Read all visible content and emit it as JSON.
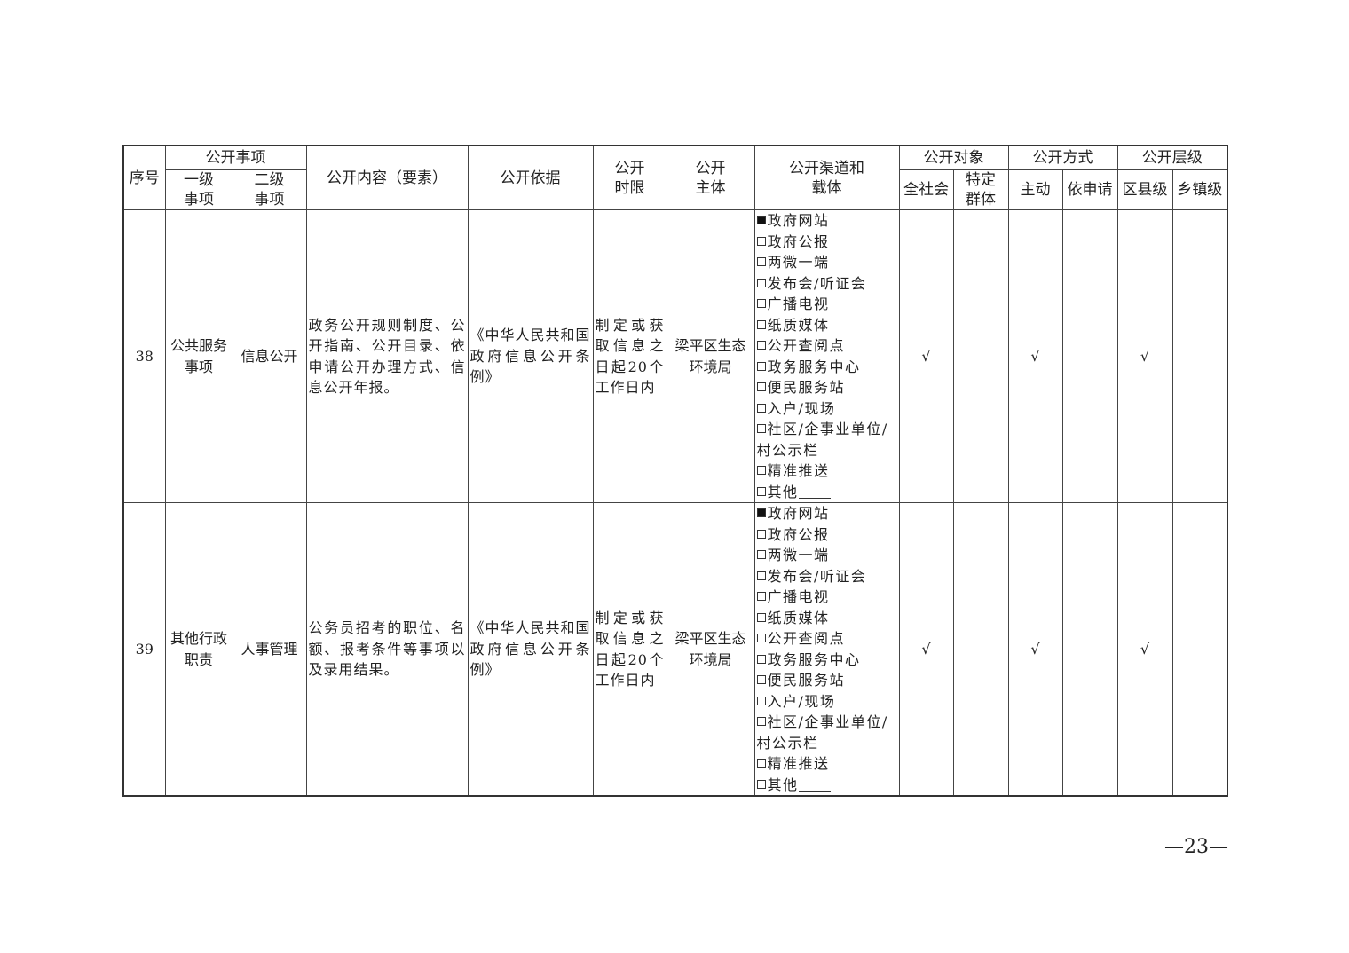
{
  "header": {
    "seq": "序号",
    "matter": "公开事项",
    "level1": "一级\n事项",
    "level1_a": "一级",
    "level1_b": "事项",
    "level2_a": "二级",
    "level2_b": "事项",
    "content": "公开内容（要素）",
    "basis": "公开依据",
    "time_a": "公开",
    "time_b": "时限",
    "subject_a": "公开",
    "subject_b": "主体",
    "channel_a": "公开渠道和",
    "channel_b": "载体",
    "target": "公开对象",
    "target_all": "全社会",
    "target_group_a": "特定",
    "target_group_b": "群体",
    "mode": "公开方式",
    "mode_active": "主动",
    "mode_request": "依申请",
    "level": "公开层级",
    "level_district": "区县级",
    "level_town": "乡镇级"
  },
  "rows": [
    {
      "seq": "38",
      "level1": "公共服务事项",
      "level2": "信息公开",
      "content": "政务公开规则制度、公开指南、公开目录、依申请公开办理方式、信息公开年报。",
      "basis": "《中华人民共和国政府信息公开条例》",
      "time": "制定或获取信息之日起20个工作日内",
      "subject": "梁平区生态环境局",
      "channels": [
        {
          "label": "政府网站",
          "checked": true
        },
        {
          "label": "政府公报",
          "checked": false
        },
        {
          "label": "两微一端",
          "checked": false
        },
        {
          "label": "发布会/听证会",
          "checked": false
        },
        {
          "label": "广播电视",
          "checked": false
        },
        {
          "label": "纸质媒体",
          "checked": false
        },
        {
          "label": "公开查阅点",
          "checked": false
        },
        {
          "label": "政务服务中心",
          "checked": false
        },
        {
          "label": "便民服务站",
          "checked": false
        },
        {
          "label": "入户/现场",
          "checked": false
        },
        {
          "label": "社区/企事业单位/",
          "checked": false
        },
        {
          "label": "村公示栏",
          "checked": null
        },
        {
          "label": "精准推送",
          "checked": false
        },
        {
          "label": "其他",
          "checked": false
        }
      ],
      "target_all": "√",
      "target_group": "",
      "mode_active": "√",
      "mode_request": "",
      "level_district": "√",
      "level_town": ""
    },
    {
      "seq": "39",
      "level1": "其他行政职责",
      "level2": "人事管理",
      "content": "公务员招考的职位、名额、报考条件等事项以及录用结果。",
      "basis": "《中华人民共和国政府信息公开条例》",
      "time": "制定或获取信息之日起20个工作日内",
      "subject": "梁平区生态环境局",
      "channels": [
        {
          "label": "政府网站",
          "checked": true
        },
        {
          "label": "政府公报",
          "checked": false
        },
        {
          "label": "两微一端",
          "checked": false
        },
        {
          "label": "发布会/听证会",
          "checked": false
        },
        {
          "label": "广播电视",
          "checked": false
        },
        {
          "label": "纸质媒体",
          "checked": false
        },
        {
          "label": "公开查阅点",
          "checked": false
        },
        {
          "label": "政务服务中心",
          "checked": false
        },
        {
          "label": "便民服务站",
          "checked": false
        },
        {
          "label": "入户/现场",
          "checked": false
        },
        {
          "label": "社区/企事业单位/",
          "checked": false
        },
        {
          "label": "村公示栏",
          "checked": null
        },
        {
          "label": "精准推送",
          "checked": false
        },
        {
          "label": "其他",
          "checked": false
        }
      ],
      "target_all": "√",
      "target_group": "",
      "mode_active": "√",
      "mode_request": "",
      "level_district": "√",
      "level_town": ""
    }
  ],
  "page_number": "—23—"
}
